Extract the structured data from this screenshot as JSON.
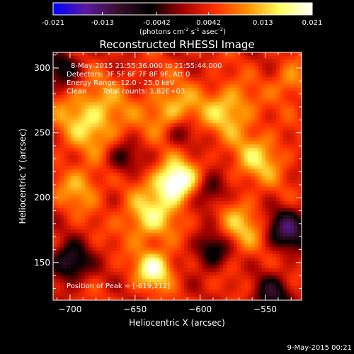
{
  "colorbar": {
    "ticks": [
      "-0.021",
      "-0.013",
      "-0.0042",
      "0.0042",
      "0.013",
      "0.021"
    ],
    "tick_values": [
      -0.021,
      -0.013,
      -0.0042,
      0.0042,
      0.013,
      0.021
    ],
    "unit_prefix": "(photons cm",
    "unit_exp1": "-2",
    "unit_mid": " s",
    "unit_exp2": "-1",
    "unit_mid2": " asec",
    "unit_exp3": "-2",
    "unit_suffix": ")",
    "range": [
      -0.021,
      0.021
    ],
    "colors": [
      "#0000ff",
      "#5a1aa0",
      "#3a0f2a",
      "#000000",
      "#a00000",
      "#ff3000",
      "#ff9000",
      "#ffff60",
      "#ffffff"
    ]
  },
  "title": "Reconstructed RHESSI Image",
  "info": {
    "time": "8-May-2015 21:55:36.000 to 21:55:44.000",
    "detectors": "Detectors: 3F 5F 6F 7F 8F 9F, Att 0",
    "energy": "Energy Range: 12.0 - 25.0 keV",
    "clean": "Clean",
    "counts": "Total counts: 1.82E+03",
    "peak": "Position of Peak = [-619,212]"
  },
  "footer": {
    "timestamp": "9-May-2015 00:21"
  },
  "chart_data": {
    "type": "heatmap",
    "title": "Reconstructed RHESSI Image",
    "xlabel": "Heliocentric X (arcsec)",
    "ylabel": "Heliocentric Y (arcsec)",
    "xlim": [
      -713,
      -522
    ],
    "ylim": [
      121,
      312
    ],
    "x_ticks": [
      -700,
      -650,
      -600,
      -550
    ],
    "x_tick_labels": [
      "−700",
      "−650",
      "−600",
      "−550"
    ],
    "y_ticks": [
      150,
      200,
      250,
      300
    ],
    "y_tick_labels": [
      "150",
      "200",
      "250",
      "300"
    ],
    "peak_position": [
      -619,
      212
    ],
    "value_range": [
      -0.021,
      0.021
    ],
    "sources": [
      {
        "x": -619,
        "y": 212,
        "sigma": 11,
        "amp": 1.0
      },
      {
        "x": -635,
        "y": 145,
        "sigma": 10,
        "amp": 0.72
      },
      {
        "x": -683,
        "y": 262,
        "sigma": 18,
        "amp": 0.55
      },
      {
        "x": -622,
        "y": 268,
        "sigma": 14,
        "amp": 0.45
      },
      {
        "x": -578,
        "y": 268,
        "sigma": 14,
        "amp": 0.5
      },
      {
        "x": -555,
        "y": 230,
        "sigma": 14,
        "amp": 0.45
      },
      {
        "x": -640,
        "y": 185,
        "sigma": 14,
        "amp": 0.55
      },
      {
        "x": -570,
        "y": 175,
        "sigma": 14,
        "amp": 0.42
      },
      {
        "x": -692,
        "y": 208,
        "sigma": 12,
        "amp": 0.38
      },
      {
        "x": -530,
        "y": 290,
        "sigma": 10,
        "amp": 0.35
      },
      {
        "x": -700,
        "y": 150,
        "sigma": 10,
        "amp": -0.7
      },
      {
        "x": -533,
        "y": 175,
        "sigma": 11,
        "amp": -0.75
      },
      {
        "x": -590,
        "y": 160,
        "sigma": 10,
        "amp": -0.6
      },
      {
        "x": -592,
        "y": 205,
        "sigma": 9,
        "amp": -0.45
      },
      {
        "x": -660,
        "y": 230,
        "sigma": 9,
        "amp": -0.4
      },
      {
        "x": -615,
        "y": 250,
        "sigma": 8,
        "amp": -0.35
      },
      {
        "x": -705,
        "y": 300,
        "sigma": 10,
        "amp": -0.5
      },
      {
        "x": -545,
        "y": 125,
        "sigma": 10,
        "amp": -0.55
      }
    ]
  }
}
